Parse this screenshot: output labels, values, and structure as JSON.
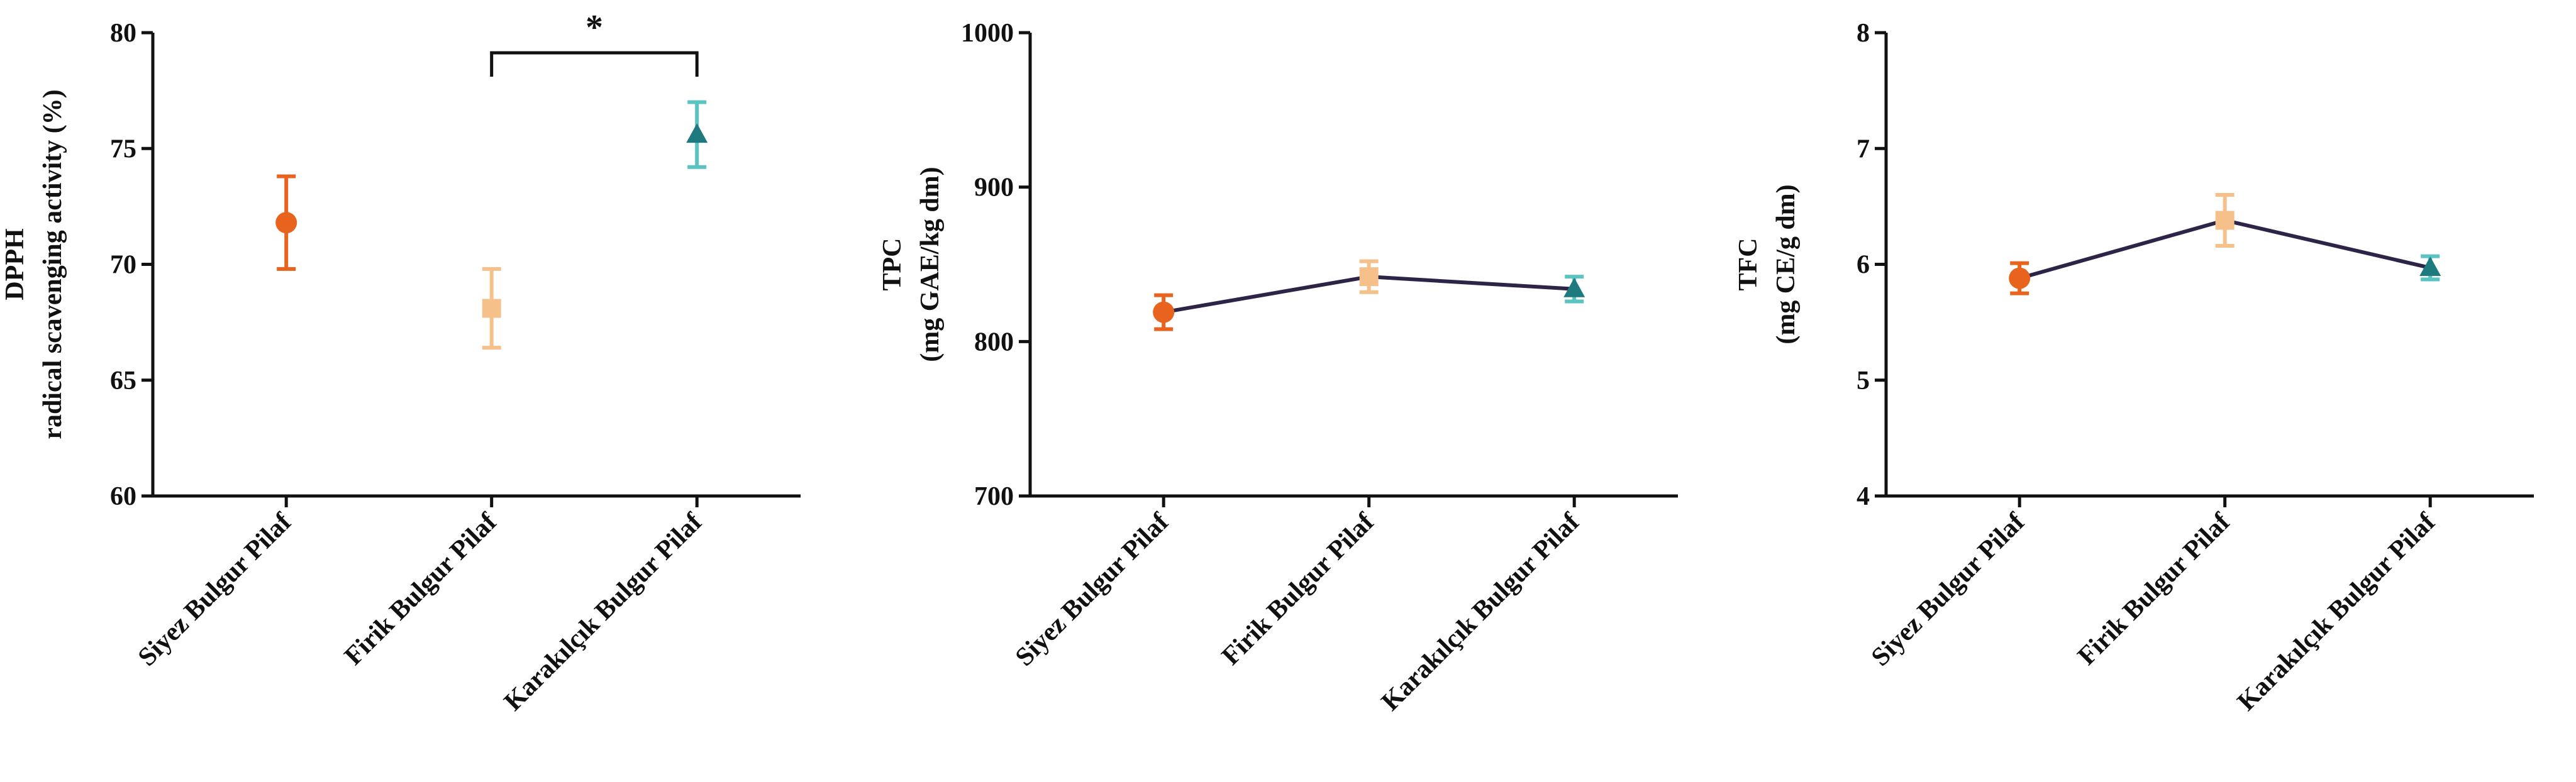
{
  "chart_data": [
    {
      "type": "point",
      "ylabel": [
        "DPPH",
        "radical scavenging activity (%)"
      ],
      "categories": [
        "Siyez Bulgur Pilaf",
        "Firik Bulgur Pilaf",
        "Karakılçık Bulgur Pilaf"
      ],
      "values": [
        71.8,
        68.1,
        75.6
      ],
      "errors": [
        2.0,
        1.7,
        1.4
      ],
      "colors": [
        "#e8641e",
        "#f5c08a",
        "#5cc3c3"
      ],
      "marker_colors": [
        "#e8641e",
        "#f5c08a",
        "#1f7a80"
      ],
      "markers": [
        "circle",
        "square",
        "triangle"
      ],
      "ylim": [
        60,
        80
      ],
      "yticks": [
        60,
        65,
        70,
        75,
        80
      ],
      "annotation": {
        "text": "*",
        "between": [
          "Firik Bulgur Pilaf",
          "Karakılçık Bulgur Pilaf"
        ]
      }
    },
    {
      "type": "line",
      "ylabel": [
        "TPC",
        "(mg GAE/kg dm)"
      ],
      "categories": [
        "Siyez Bulgur Pilaf",
        "Firik Bulgur Pilaf",
        "Karakılçık Bulgur Pilaf"
      ],
      "values": [
        819,
        842,
        834
      ],
      "errors": [
        11,
        10,
        8
      ],
      "colors": [
        "#e8641e",
        "#f5c08a",
        "#5cc3c3"
      ],
      "marker_colors": [
        "#e8641e",
        "#f5c08a",
        "#1f7a80"
      ],
      "markers": [
        "circle",
        "square",
        "triangle"
      ],
      "line_color": "#2e2448",
      "ylim": [
        700,
        1000
      ],
      "yticks": [
        700,
        800,
        900,
        1000
      ]
    },
    {
      "type": "line",
      "ylabel": [
        "TFC",
        "(mg CE/g dm)"
      ],
      "categories": [
        "Siyez Bulgur Pilaf",
        "Firik Bulgur Pilaf",
        "Karakılçık Bulgur Pilaf"
      ],
      "values": [
        5.88,
        6.38,
        5.97
      ],
      "errors": [
        0.13,
        0.22,
        0.1
      ],
      "colors": [
        "#e8641e",
        "#f5c08a",
        "#5cc3c3"
      ],
      "marker_colors": [
        "#e8641e",
        "#f5c08a",
        "#1f7a80"
      ],
      "markers": [
        "circle",
        "square",
        "triangle"
      ],
      "line_color": "#2e2448",
      "ylim": [
        4,
        8
      ],
      "yticks": [
        4,
        5,
        6,
        7,
        8
      ]
    }
  ]
}
